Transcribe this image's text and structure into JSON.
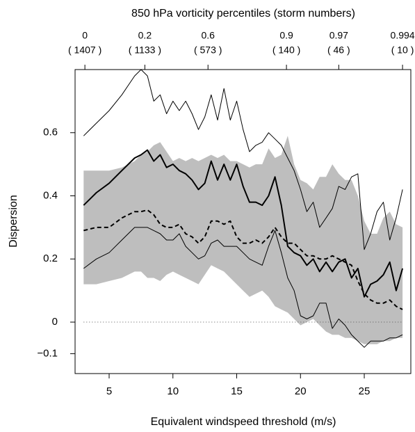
{
  "chart_data": {
    "type": "line",
    "top_axis": {
      "title": "850 hPa vorticity percentiles (storm numbers)",
      "ticks": [
        {
          "x": 3.1,
          "percentile": 0,
          "storms_label": "( 1407 )"
        },
        {
          "x": 7.8,
          "percentile": 0.2,
          "storms_label": "( 1133 )"
        },
        {
          "x": 12.75,
          "percentile": 0.6,
          "storms_label": "( 573 )"
        },
        {
          "x": 18.9,
          "percentile": 0.9,
          "storms_label": "( 140 )"
        },
        {
          "x": 23.0,
          "percentile": 0.97,
          "storms_label": "( 46 )"
        },
        {
          "x": 28.0,
          "percentile": 0.994,
          "storms_label": "( 10 )"
        }
      ]
    },
    "x_label": "Equivalent windspeed threshold (m/s)",
    "y_label": "Dispersion",
    "xlim": [
      2.33,
      28.65
    ],
    "ylim": [
      -0.163,
      0.8
    ],
    "xticks": [
      5,
      10,
      15,
      20,
      25
    ],
    "yticks": [
      {
        "value": -0.1,
        "label": "−0.1"
      },
      0,
      0.2,
      0.4,
      0.6
    ],
    "hline": {
      "value": 0,
      "style": "dotted",
      "color": "#555555"
    },
    "x": [
      3,
      4,
      5,
      6,
      7,
      7.5,
      8,
      8.5,
      9,
      9.5,
      10,
      10.5,
      11,
      11.5,
      12,
      12.5,
      13,
      13.5,
      14,
      14.5,
      15,
      15.5,
      16,
      16.5,
      17,
      17.5,
      18,
      18.5,
      19,
      19.5,
      20,
      20.5,
      21,
      21.5,
      22,
      22.5,
      23,
      23.5,
      24,
      24.5,
      25,
      25.5,
      26,
      26.5,
      27,
      27.5,
      28
    ],
    "band": {
      "color": "#bebebe",
      "upper": [
        0.48,
        0.48,
        0.48,
        0.49,
        0.51,
        0.53,
        0.54,
        0.56,
        0.57,
        0.54,
        0.51,
        0.52,
        0.51,
        0.52,
        0.51,
        0.52,
        0.53,
        0.52,
        0.53,
        0.51,
        0.51,
        0.5,
        0.49,
        0.5,
        0.5,
        0.55,
        0.52,
        0.53,
        0.59,
        0.5,
        0.45,
        0.44,
        0.42,
        0.46,
        0.46,
        0.5,
        0.47,
        0.45,
        0.45,
        0.4,
        0.32,
        0.28,
        0.28,
        0.33,
        0.35,
        0.31,
        0.3
      ],
      "lower": [
        0.12,
        0.12,
        0.13,
        0.14,
        0.16,
        0.16,
        0.14,
        0.14,
        0.13,
        0.15,
        0.16,
        0.15,
        0.14,
        0.13,
        0.12,
        0.15,
        0.18,
        0.17,
        0.16,
        0.14,
        0.12,
        0.1,
        0.08,
        0.09,
        0.1,
        0.08,
        0.05,
        0.04,
        0.03,
        0.01,
        -0.01,
        0.0,
        0.01,
        -0.01,
        -0.03,
        -0.04,
        -0.04,
        -0.05,
        -0.05,
        -0.06,
        -0.07,
        -0.07,
        -0.07,
        -0.06,
        -0.06,
        -0.05,
        -0.05
      ]
    },
    "series": [
      {
        "color": "#000000",
        "style": "solid",
        "width": 1,
        "values": [
          0.59,
          0.63,
          0.67,
          0.72,
          0.78,
          0.8,
          0.78,
          0.7,
          0.72,
          0.66,
          0.7,
          0.67,
          0.7,
          0.66,
          0.61,
          0.65,
          0.72,
          0.64,
          0.74,
          0.64,
          0.7,
          0.61,
          0.54,
          0.56,
          0.57,
          0.6,
          0.58,
          0.56,
          0.52,
          0.48,
          0.42,
          0.35,
          0.38,
          0.3,
          0.33,
          0.36,
          0.43,
          0.42,
          0.46,
          0.47,
          0.23,
          0.28,
          0.35,
          0.38,
          0.26,
          0.33,
          0.42
        ]
      },
      {
        "color": "#000000",
        "style": "solid",
        "width": 2,
        "values": [
          0.37,
          0.41,
          0.44,
          0.48,
          0.52,
          0.53,
          0.545,
          0.51,
          0.53,
          0.49,
          0.5,
          0.48,
          0.47,
          0.45,
          0.42,
          0.44,
          0.51,
          0.45,
          0.5,
          0.45,
          0.5,
          0.43,
          0.38,
          0.38,
          0.37,
          0.4,
          0.46,
          0.37,
          0.24,
          0.22,
          0.21,
          0.18,
          0.2,
          0.16,
          0.19,
          0.16,
          0.19,
          0.2,
          0.14,
          0.17,
          0.08,
          0.12,
          0.13,
          0.15,
          0.19,
          0.1,
          0.17
        ]
      },
      {
        "color": "#000000",
        "style": "dashed",
        "width": 2,
        "values": [
          0.29,
          0.3,
          0.3,
          0.33,
          0.35,
          0.35,
          0.355,
          0.34,
          0.31,
          0.3,
          0.3,
          0.31,
          0.28,
          0.27,
          0.25,
          0.27,
          0.32,
          0.32,
          0.31,
          0.32,
          0.27,
          0.25,
          0.25,
          0.26,
          0.25,
          0.27,
          0.3,
          0.27,
          0.25,
          0.25,
          0.23,
          0.21,
          0.21,
          0.2,
          0.2,
          0.21,
          0.2,
          0.19,
          0.18,
          0.13,
          0.09,
          0.07,
          0.06,
          0.06,
          0.07,
          0.05,
          0.04
        ]
      },
      {
        "color": "#000000",
        "style": "solid",
        "width": 1,
        "values": [
          0.17,
          0.2,
          0.22,
          0.26,
          0.3,
          0.3,
          0.3,
          0.29,
          0.28,
          0.26,
          0.26,
          0.28,
          0.24,
          0.22,
          0.2,
          0.21,
          0.25,
          0.26,
          0.24,
          0.24,
          0.24,
          0.22,
          0.2,
          0.19,
          0.18,
          0.24,
          0.29,
          0.22,
          0.14,
          0.1,
          0.02,
          0.01,
          0.02,
          0.06,
          0.06,
          -0.02,
          0.01,
          -0.01,
          -0.04,
          -0.06,
          -0.08,
          -0.06,
          -0.06,
          -0.06,
          -0.05,
          -0.05,
          -0.04
        ]
      }
    ]
  }
}
